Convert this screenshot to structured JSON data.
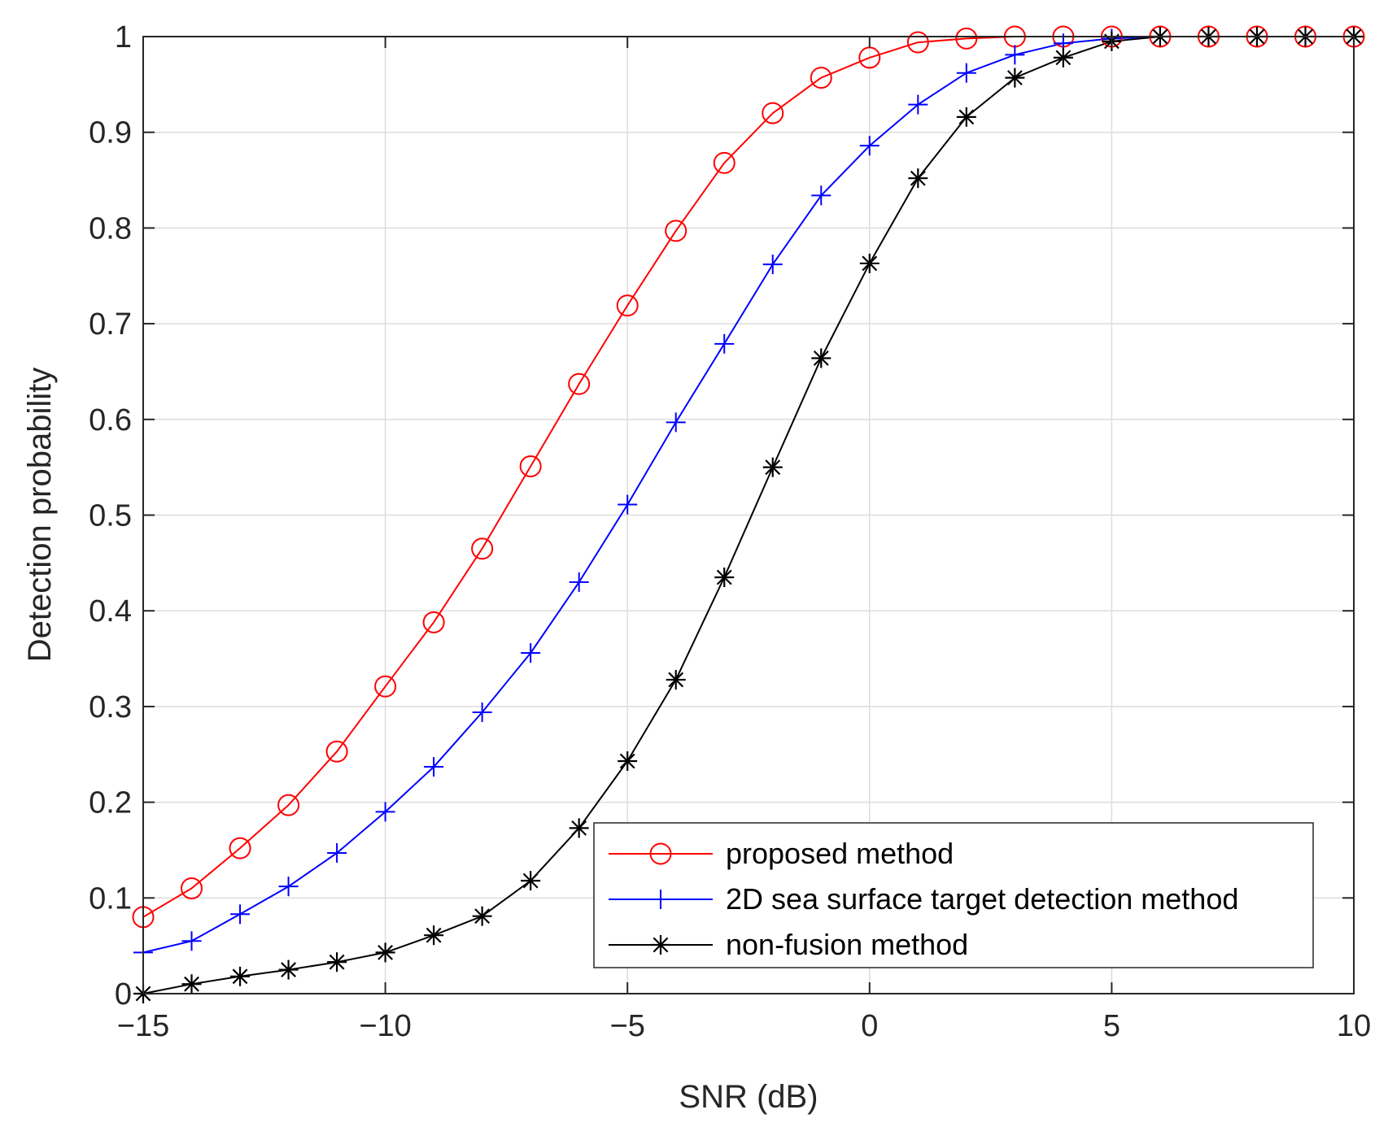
{
  "chart_data": {
    "type": "line",
    "title": "",
    "xlabel": "SNR (dB)",
    "ylabel": "Detection probability",
    "xlim": [
      -15,
      10
    ],
    "ylim": [
      0,
      1
    ],
    "grid": true,
    "legend_position": "bottom-right",
    "xticks": [
      -15,
      -10,
      -5,
      0,
      5,
      10
    ],
    "xtick_labels": [
      "−15",
      "−10",
      "−5",
      "0",
      "5",
      "10"
    ],
    "yticks": [
      0,
      0.1,
      0.2,
      0.3,
      0.4,
      0.5,
      0.6,
      0.7,
      0.8,
      0.9,
      1
    ],
    "ytick_labels": [
      "0",
      "0.1",
      "0.2",
      "0.3",
      "0.4",
      "0.5",
      "0.6",
      "0.7",
      "0.8",
      "0.9",
      "1"
    ],
    "x": [
      -15,
      -14,
      -13,
      -12,
      -11,
      -10,
      -9,
      -8,
      -7,
      -6,
      -5,
      -4,
      -3,
      -2,
      -1,
      0,
      1,
      2,
      3,
      4,
      5,
      6,
      7,
      8,
      9,
      10
    ],
    "series": [
      {
        "name": "proposed method",
        "color": "#ff0000",
        "marker": "circle",
        "values": [
          0.08,
          0.11,
          0.152,
          0.197,
          0.253,
          0.321,
          0.388,
          0.465,
          0.551,
          0.637,
          0.719,
          0.797,
          0.868,
          0.92,
          0.957,
          0.978,
          0.994,
          0.998,
          1.0,
          1.0,
          1.0,
          1.0,
          1.0,
          1.0,
          1.0,
          1.0
        ]
      },
      {
        "name": "2D sea surface target detection method",
        "color": "#0000ff",
        "marker": "plus",
        "values": [
          0.043,
          0.055,
          0.083,
          0.112,
          0.147,
          0.19,
          0.237,
          0.294,
          0.356,
          0.43,
          0.511,
          0.597,
          0.679,
          0.762,
          0.834,
          0.886,
          0.929,
          0.962,
          0.981,
          0.993,
          0.998,
          1.0,
          1.0,
          1.0,
          1.0,
          1.0
        ]
      },
      {
        "name": "non-fusion method",
        "color": "#000000",
        "marker": "asterisk",
        "values": [
          0.0,
          0.01,
          0.018,
          0.025,
          0.033,
          0.043,
          0.061,
          0.081,
          0.118,
          0.173,
          0.243,
          0.328,
          0.435,
          0.55,
          0.664,
          0.763,
          0.852,
          0.916,
          0.957,
          0.978,
          0.995,
          1.0,
          1.0,
          1.0,
          1.0,
          1.0
        ]
      }
    ]
  }
}
